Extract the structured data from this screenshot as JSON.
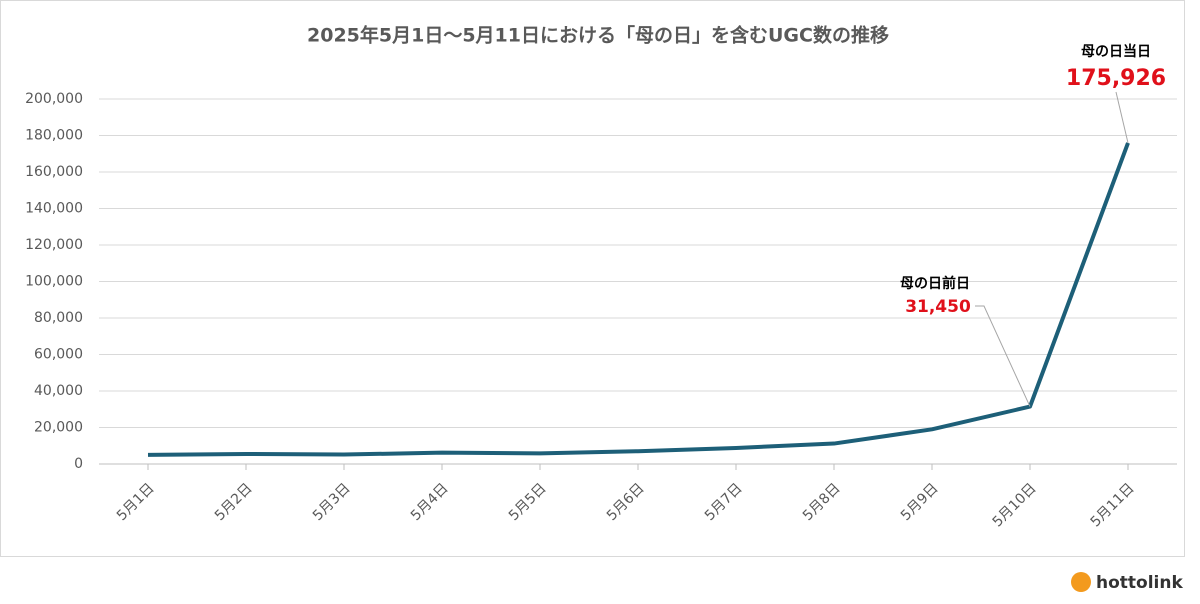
{
  "chart_data": {
    "type": "line",
    "title": "2025年5月1日〜5月11日における「母の日」を含むUGC数の推移",
    "categories": [
      "5月1日",
      "5月2日",
      "5月3日",
      "5月4日",
      "5月5日",
      "5月6日",
      "5月7日",
      "5月8日",
      "5月9日",
      "5月10日",
      "5月11日"
    ],
    "values": [
      5000,
      5500,
      5200,
      6200,
      5800,
      7000,
      8800,
      11200,
      19000,
      31450,
      175926
    ],
    "value_labels": [
      null,
      null,
      null,
      null,
      null,
      null,
      null,
      null,
      null,
      "31,450",
      "175,926"
    ],
    "annotations": [
      null,
      null,
      null,
      null,
      null,
      null,
      null,
      null,
      null,
      "母の日前日",
      "母の日当日"
    ],
    "color": "#1d5f78",
    "ylim": [
      0,
      200000
    ],
    "yticks": [
      0,
      {
        "value": 20000,
        "label": "20,000"
      },
      {
        "value": 40000,
        "label": "40,000"
      },
      {
        "value": 60000,
        "label": "60,000"
      },
      {
        "value": 80000,
        "label": "80,000"
      },
      {
        "value": 100000,
        "label": "100,000"
      },
      {
        "value": 120000,
        "label": "120,000"
      },
      {
        "value": 140000,
        "label": "140,000"
      },
      {
        "value": 160000,
        "label": "160,000"
      },
      {
        "value": 180000,
        "label": "180,000"
      },
      {
        "value": 200000,
        "label": "200,000"
      }
    ],
    "grid": true
  },
  "logo": "hottolink"
}
